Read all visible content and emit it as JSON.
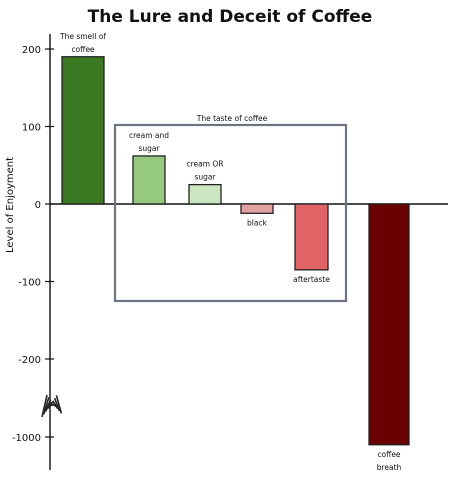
{
  "chart_data": {
    "type": "bar",
    "title": "The Lure and Deceit of Coffee",
    "xlabel": "",
    "ylabel": "Level of Enjoyment",
    "y_ticks": [
      "200",
      "100",
      "0",
      "-100",
      "-200",
      "-1000"
    ],
    "axis_break": true,
    "grid": false,
    "series": [
      {
        "categories": [
          "The smell of coffee",
          "cream and sugar",
          "cream OR sugar",
          "black",
          "aftertaste",
          "coffee breath"
        ],
        "values": [
          190,
          62,
          25,
          -12,
          -85,
          -1010
        ],
        "colors": [
          "#3b7a23",
          "#94c97f",
          "#cce6c2",
          "#e3a0a0",
          "#e06464",
          "#6b0000"
        ]
      }
    ],
    "annotations": [
      {
        "text": "The taste of coffee",
        "spans": [
          "cream and sugar",
          "cream OR sugar",
          "black",
          "aftertaste"
        ]
      }
    ]
  }
}
